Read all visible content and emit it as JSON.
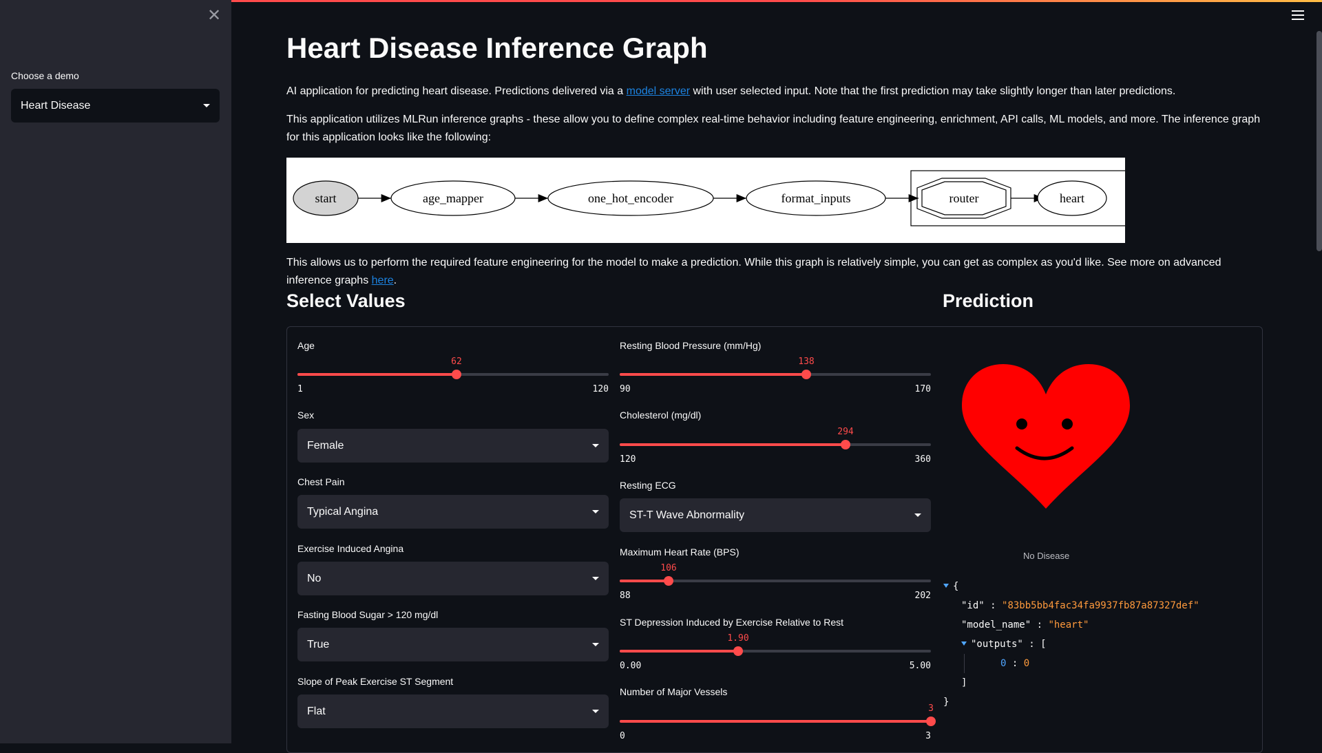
{
  "sidebar": {
    "close_icon": "close-icon",
    "select_label": "Choose a demo",
    "select_value": "Heart Disease"
  },
  "header": {
    "menu_icon": "hamburger-menu-icon"
  },
  "main": {
    "title": "Heart Disease Inference Graph",
    "intro_text_1": "AI application for predicting heart disease. Predictions delivered via a ",
    "intro_link": "model server",
    "intro_text_2": " with user selected input. Note that the first prediction may take slightly longer than later predictions.",
    "graph_text": "This application utilizes MLRun inference graphs - these allow you to define complex real-time behavior including feature engineering, enrichment, API calls, ML models, and more. The inference graph for this application looks like the following:",
    "graph_nodes": [
      "start",
      "age_mapper",
      "one_hot_encoder",
      "format_inputs",
      "router",
      "heart"
    ],
    "after_text": "This allows us to perform the required feature engineering for the model to make a prediction. While this graph is relatively simple, you can get as complex as you'd like. See more on advanced inference graphs ",
    "after_link": "here",
    "after_end": "."
  },
  "select_values": {
    "heading": "Select Values",
    "age": {
      "label": "Age",
      "value": 62,
      "min": 1,
      "max": 120
    },
    "sex": {
      "label": "Sex",
      "value": "Female"
    },
    "chest_pain": {
      "label": "Chest Pain",
      "value": "Typical Angina"
    },
    "exercise_angina": {
      "label": "Exercise Induced Angina",
      "value": "No"
    },
    "fasting_sugar": {
      "label": "Fasting Blood Sugar > 120 mg/dl",
      "value": "True"
    },
    "slope": {
      "label": "Slope of Peak Exercise ST Segment",
      "value": "Flat"
    },
    "resting_bp": {
      "label": "Resting Blood Pressure (mm/Hg)",
      "value": 138,
      "min": 90,
      "max": 170
    },
    "cholesterol": {
      "label": "Cholesterol (mg/dl)",
      "value": 294,
      "min": 120,
      "max": 360
    },
    "resting_ecg": {
      "label": "Resting ECG",
      "value": "ST-T Wave Abnormality"
    },
    "max_heart_rate": {
      "label": "Maximum Heart Rate (BPS)",
      "value": 106,
      "min": 88,
      "max": 202
    },
    "st_depression": {
      "label": "ST Depression Induced by Exercise Relative to Rest",
      "value": "1.90",
      "min": "0.00",
      "max": "5.00",
      "fraction": 0.38
    },
    "major_vessels": {
      "label": "Number of Major Vessels",
      "value": 3,
      "min": 0,
      "max": 3
    }
  },
  "prediction": {
    "heading": "Prediction",
    "label": "No Disease",
    "heart_color": "#ff0000",
    "json": {
      "open_brace": "{",
      "id_key": "\"id\"",
      "id_value": "\"83bb5bb4fac34fa9937fb87a87327def\"",
      "model_key": "\"model_name\"",
      "model_value": "\"heart\"",
      "outputs_key": "\"outputs\"",
      "open_bracket": "[",
      "item_index": "0",
      "item_value": "0",
      "close_bracket": "]",
      "close_brace": "}"
    }
  },
  "colors": {
    "accent": "#ff4b4b",
    "link": "#1c83e1",
    "background": "#0e1117",
    "sidebar": "#262730"
  }
}
